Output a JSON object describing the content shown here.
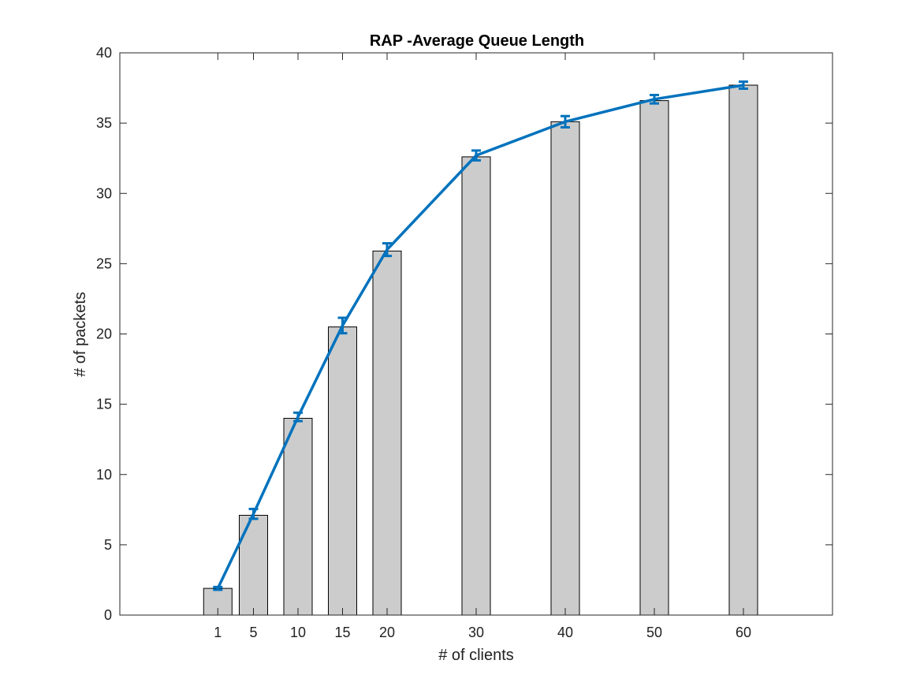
{
  "chart_data": {
    "type": "bar",
    "title": "RAP -Average Queue Length",
    "xlabel": "# of clients",
    "ylabel": "# of packets",
    "x": [
      1,
      5,
      10,
      15,
      20,
      30,
      40,
      50,
      60
    ],
    "xlim": [
      -10,
      70
    ],
    "ylim": [
      0,
      40
    ],
    "yticks": [
      0,
      5,
      10,
      15,
      20,
      25,
      30,
      35,
      40
    ],
    "grid": false,
    "series": [
      {
        "kind": "bar",
        "values": [
          1.9,
          7.1,
          14.0,
          20.5,
          25.9,
          32.6,
          35.1,
          36.6,
          37.7
        ]
      },
      {
        "kind": "line-with-errorbars",
        "values": [
          1.9,
          7.2,
          14.1,
          20.6,
          26.0,
          32.7,
          35.1,
          36.7,
          37.7
        ],
        "errors": [
          0.1,
          0.35,
          0.3,
          0.55,
          0.45,
          0.35,
          0.4,
          0.3,
          0.25
        ]
      }
    ],
    "colors": {
      "bar_fill": "#cccccc",
      "bar_edge": "#000000",
      "line": "#0072bd"
    }
  }
}
